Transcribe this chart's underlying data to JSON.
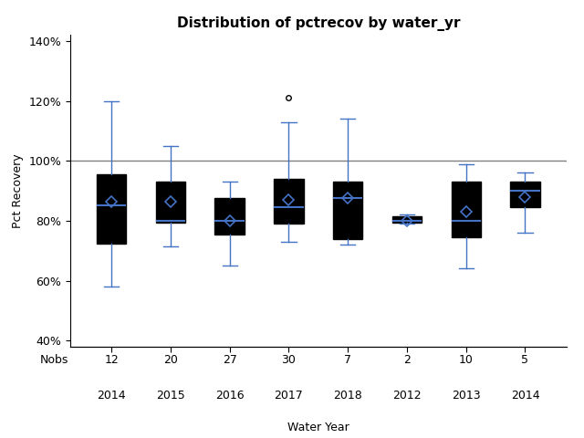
{
  "title": "Distribution of pctrecov by water_yr",
  "xlabel": "Water Year",
  "ylabel": "Pct Recovery",
  "xlabels": [
    "2014",
    "2015",
    "2016",
    "2017",
    "2018",
    "2012",
    "2013",
    "2014"
  ],
  "nobs": [
    12,
    20,
    27,
    30,
    7,
    2,
    10,
    5
  ],
  "ylim": [
    0.38,
    1.42
  ],
  "yticks": [
    0.4,
    0.6,
    0.8,
    1.0,
    1.2,
    1.4
  ],
  "ytick_labels": [
    "40%",
    "60%",
    "80%",
    "100%",
    "120%",
    "140%"
  ],
  "hline_y": 1.0,
  "box_facecolor": "#b8cce4",
  "box_edge_color": "#000000",
  "whisker_color": "#4472c4",
  "median_color": "#4472c4",
  "mean_marker_color": "#4472c4",
  "flier_color": "#000000",
  "boxes": [
    {
      "q1": 0.725,
      "median": 0.85,
      "q3": 0.955,
      "mean": 0.865,
      "whislo": 0.58,
      "whishi": 1.2,
      "fliers": []
    },
    {
      "q1": 0.795,
      "median": 0.8,
      "q3": 0.93,
      "mean": 0.865,
      "whislo": 0.715,
      "whishi": 1.05,
      "fliers": []
    },
    {
      "q1": 0.755,
      "median": 0.8,
      "q3": 0.875,
      "mean": 0.8,
      "whislo": 0.65,
      "whishi": 0.93,
      "fliers": []
    },
    {
      "q1": 0.79,
      "median": 0.845,
      "q3": 0.94,
      "mean": 0.87,
      "whislo": 0.73,
      "whishi": 1.13,
      "fliers": [
        1.21
      ]
    },
    {
      "q1": 0.74,
      "median": 0.875,
      "q3": 0.93,
      "mean": 0.875,
      "whislo": 0.72,
      "whishi": 1.14,
      "fliers": []
    },
    {
      "q1": 0.795,
      "median": 0.8,
      "q3": 0.815,
      "mean": 0.8,
      "whislo": 0.79,
      "whishi": 0.82,
      "fliers": []
    },
    {
      "q1": 0.745,
      "median": 0.8,
      "q3": 0.93,
      "mean": 0.83,
      "whislo": 0.64,
      "whishi": 0.99,
      "fliers": []
    },
    {
      "q1": 0.845,
      "median": 0.9,
      "q3": 0.93,
      "mean": 0.88,
      "whislo": 0.76,
      "whishi": 0.96,
      "fliers": []
    }
  ]
}
